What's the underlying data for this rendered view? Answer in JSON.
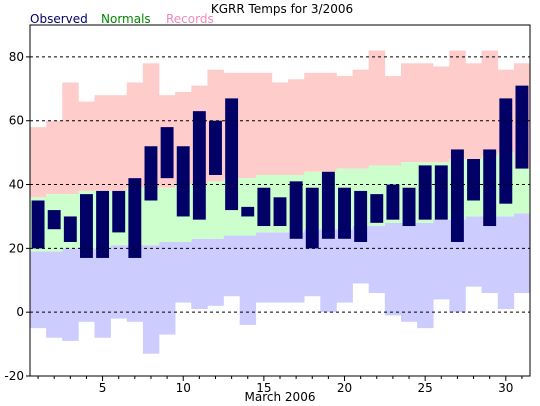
{
  "chart_data": {
    "type": "bar",
    "title": "KGRR Temps for 3/2006",
    "xlabel": "March 2006",
    "ylabel": "",
    "xlim": [
      1,
      31
    ],
    "ylim": [
      -20,
      90
    ],
    "yticks": [
      -20,
      0,
      20,
      40,
      60,
      80
    ],
    "xticks": [
      5,
      10,
      15,
      20,
      25,
      30
    ],
    "grid": "dashed horizontal at 20-degree steps",
    "legend_placement": "top-left above plot",
    "legend": [
      {
        "name": "Observed",
        "color": "#000066"
      },
      {
        "name": "Normals",
        "color": "#008800"
      },
      {
        "name": "Records",
        "color": "#ee88bb"
      }
    ],
    "colors": {
      "observed": "#000066",
      "normals": "#ccffcc",
      "record_high_band": "#ffcccc",
      "record_low_band": "#ccccff"
    },
    "days": [
      1,
      2,
      3,
      4,
      5,
      6,
      7,
      8,
      9,
      10,
      11,
      12,
      13,
      14,
      15,
      16,
      17,
      18,
      19,
      20,
      21,
      22,
      23,
      24,
      25,
      26,
      27,
      28,
      29,
      30,
      31
    ],
    "record_high": [
      58,
      60,
      72,
      66,
      68,
      68,
      72,
      78,
      68,
      69,
      71,
      76,
      75,
      75,
      75,
      72,
      73,
      75,
      75,
      74,
      76,
      82,
      74,
      78,
      78,
      77,
      82,
      78,
      82,
      76,
      78
    ],
    "record_low": [
      -5,
      -8,
      -9,
      -3,
      -8,
      -2,
      -3,
      -13,
      -7,
      3,
      1,
      2,
      5,
      -4,
      3,
      3,
      3,
      5,
      0,
      3,
      9,
      6,
      -1,
      -3,
      -5,
      4,
      0,
      8,
      6,
      1,
      6
    ],
    "normal_high": [
      36,
      37,
      37,
      38,
      38,
      38,
      39,
      39,
      39,
      40,
      40,
      41,
      42,
      42,
      43,
      43,
      43,
      44,
      44,
      45,
      45,
      46,
      46,
      47,
      47,
      47,
      48,
      48,
      49,
      50,
      45
    ],
    "normal_low": [
      19,
      19,
      20,
      20,
      20,
      21,
      21,
      21,
      22,
      22,
      23,
      23,
      24,
      24,
      25,
      25,
      25,
      26,
      26,
      26,
      27,
      27,
      28,
      28,
      28,
      29,
      29,
      30,
      30,
      30,
      31
    ],
    "observed_high": [
      35,
      32,
      30,
      37,
      38,
      38,
      42,
      52,
      58,
      52,
      63,
      60,
      67,
      33,
      39,
      36,
      41,
      39,
      44,
      39,
      38,
      37,
      40,
      39,
      46,
      46,
      51,
      48,
      51,
      67,
      71
    ],
    "observed_low": [
      20,
      26,
      22,
      17,
      17,
      25,
      17,
      35,
      42,
      30,
      29,
      43,
      32,
      30,
      27,
      27,
      23,
      20,
      23,
      23,
      22,
      28,
      29,
      27,
      29,
      29,
      22,
      35,
      27,
      34,
      45
    ]
  }
}
